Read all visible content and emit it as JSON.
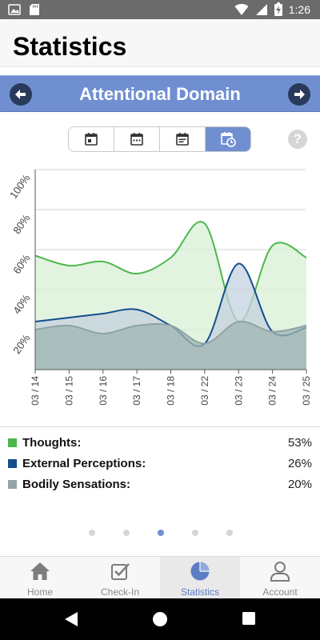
{
  "status_bar": {
    "time": "1:26"
  },
  "header": {
    "title": "Statistics"
  },
  "domain_bar": {
    "title": "Attentional Domain"
  },
  "segments": [
    {
      "icon": "calendar-day-icon",
      "active": false
    },
    {
      "icon": "calendar-week-icon",
      "active": false
    },
    {
      "icon": "calendar-month-icon",
      "active": false
    },
    {
      "icon": "calendar-clock-icon",
      "active": true
    }
  ],
  "help": {
    "label": "?"
  },
  "chart_data": {
    "type": "area",
    "categories": [
      "03 / 14",
      "03 / 15",
      "03 / 16",
      "03 / 17",
      "03 / 18",
      "03 / 22",
      "03 / 23",
      "03 / 24",
      "03 / 25"
    ],
    "y_ticks": [
      "20%",
      "40%",
      "60%",
      "80%",
      "100%"
    ],
    "ylim": [
      0,
      100
    ],
    "grid": true,
    "series": [
      {
        "name": "Thoughts",
        "color": "#4cb84c",
        "fill": "#d8efd5",
        "values": [
          57,
          52,
          54,
          48,
          56,
          73,
          24,
          62,
          56
        ]
      },
      {
        "name": "External Perceptions",
        "color": "#134e8e",
        "fill": "#c4d1df",
        "values": [
          24,
          26,
          28,
          30,
          22,
          13,
          53,
          19,
          21
        ]
      },
      {
        "name": "Bodily Sensations",
        "color": "#8fa3a3",
        "fill": "#9fb4b2",
        "values": [
          20,
          22,
          18,
          22,
          22,
          13,
          24,
          19,
          22
        ]
      }
    ]
  },
  "legend": [
    {
      "label": "Thoughts:",
      "value": "53%",
      "color": "#4cb84c"
    },
    {
      "label": "External Perceptions:",
      "value": "26%",
      "color": "#134e8e"
    },
    {
      "label": "Bodily Sensations:",
      "value": "20%",
      "color": "#95a5a6"
    }
  ],
  "pager": {
    "count": 5,
    "active": 2
  },
  "tabs": [
    {
      "label": "Home",
      "icon": "home-icon",
      "active": false
    },
    {
      "label": "Check-In",
      "icon": "checkbox-icon",
      "active": false
    },
    {
      "label": "Statistics",
      "icon": "pie-chart-icon",
      "active": true
    },
    {
      "label": "Account",
      "icon": "user-icon",
      "active": false
    }
  ]
}
